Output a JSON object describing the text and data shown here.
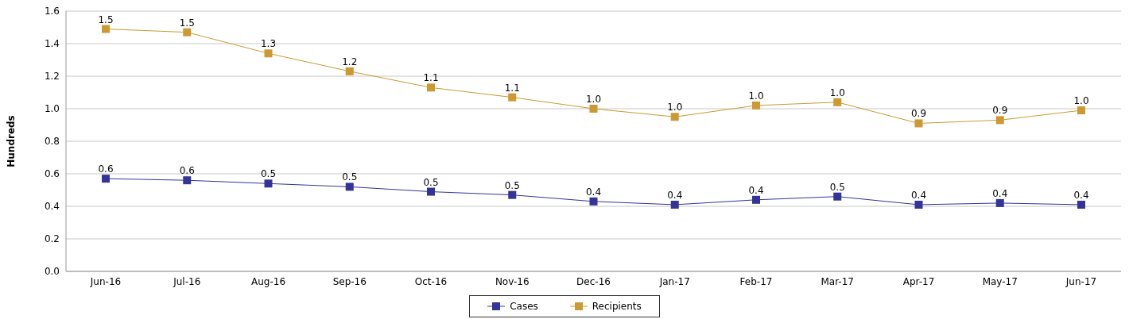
{
  "chart_data": {
    "type": "line",
    "ylabel": "Hundreds",
    "categories": [
      "Jun-16",
      "Jul-16",
      "Aug-16",
      "Sep-16",
      "Oct-16",
      "Nov-16",
      "Dec-16",
      "Jan-17",
      "Feb-17",
      "Mar-17",
      "Apr-17",
      "May-17",
      "Jun-17"
    ],
    "series": [
      {
        "name": "Cases",
        "color": "#333399",
        "values": [
          0.57,
          0.56,
          0.54,
          0.52,
          0.49,
          0.47,
          0.43,
          0.41,
          0.44,
          0.46,
          0.41,
          0.42,
          0.41
        ],
        "value_labels": [
          "0.6",
          "0.6",
          "0.5",
          "0.5",
          "0.5",
          "0.5",
          "0.4",
          "0.4",
          "0.4",
          "0.5",
          "0.4",
          "0.4",
          "0.4"
        ]
      },
      {
        "name": "Recipients",
        "color": "#cc9933",
        "values": [
          1.49,
          1.47,
          1.34,
          1.23,
          1.13,
          1.07,
          1.0,
          0.95,
          1.02,
          1.04,
          0.91,
          0.93,
          0.99
        ],
        "value_labels": [
          "1.5",
          "1.5",
          "1.3",
          "1.2",
          "1.1",
          "1.1",
          "1.0",
          "1.0",
          "1.0",
          "1.0",
          "0.9",
          "0.9",
          "1.0"
        ]
      }
    ],
    "ylim": [
      0,
      1.6
    ],
    "yticks": [
      {
        "value": 0,
        "label": "0.0"
      },
      {
        "value": 0.2,
        "label": "0.2"
      },
      {
        "value": 0.4,
        "label": "0.4"
      },
      {
        "value": 0.6,
        "label": "0.6"
      },
      {
        "value": 0.8,
        "label": "0.8"
      },
      {
        "value": 1,
        "label": "1.0"
      },
      {
        "value": 1.2,
        "label": "1.2"
      },
      {
        "value": 1.4,
        "label": "1.4"
      },
      {
        "value": 1.6,
        "label": "1.6"
      }
    ],
    "grid": "y",
    "legend": "bottom",
    "marker": "square",
    "line_style": "solid"
  }
}
